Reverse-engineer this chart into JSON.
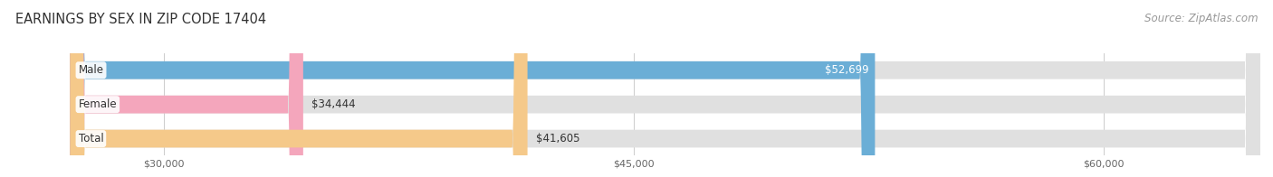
{
  "title": "EARNINGS BY SEX IN ZIP CODE 17404",
  "source": "Source: ZipAtlas.com",
  "categories": [
    "Male",
    "Female",
    "Total"
  ],
  "values": [
    52699,
    34444,
    41605
  ],
  "labels": [
    "$52,699",
    "$34,444",
    "$41,605"
  ],
  "bar_colors": [
    "#6baed6",
    "#f4a6bc",
    "#f5c98a"
  ],
  "bar_bg_color": "#e0e0e0",
  "xmin": 27000,
  "xmax": 65000,
  "xticks": [
    30000,
    45000,
    60000
  ],
  "xtick_labels": [
    "$30,000",
    "$45,000",
    "$60,000"
  ],
  "title_fontsize": 10.5,
  "source_fontsize": 8.5,
  "label_fontsize": 8.5,
  "category_fontsize": 8.5,
  "bar_height": 0.52,
  "background_color": "#ffffff"
}
